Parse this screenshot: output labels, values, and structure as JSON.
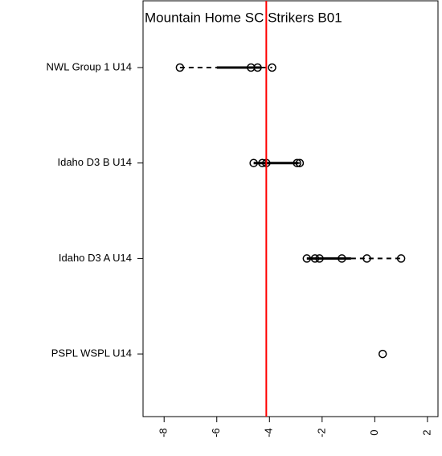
{
  "chart_data": {
    "type": "strip",
    "title": "Mountain Home SC Strikers B01",
    "title_color": "#ff0000",
    "ref_line": -4.12,
    "categories": [
      "NWL Group 1 U14",
      "Idaho D3 B U14",
      "Idaho D3 A U14",
      "PSPL WSPL U14"
    ],
    "points": [
      [
        -7.4,
        -4.7,
        -4.45,
        -3.9
      ],
      [
        -4.6,
        -4.27,
        -4.12,
        -2.95,
        -2.85
      ],
      [
        -2.58,
        -2.27,
        -2.1,
        -1.25,
        -0.3,
        1.0
      ],
      [
        0.3
      ]
    ],
    "ranges": [
      [
        -7.4,
        -6.0,
        -4.3,
        -3.9
      ],
      [
        -4.6,
        -4.6,
        -2.9,
        -2.85
      ],
      [
        -2.58,
        -2.58,
        -0.9,
        1.0
      ],
      [
        0.3,
        0.3,
        0.3,
        0.3
      ]
    ],
    "xlim": [
      -8.8,
      2.4
    ],
    "xticks": [
      -8,
      -6,
      -4,
      -2,
      0,
      2
    ]
  }
}
